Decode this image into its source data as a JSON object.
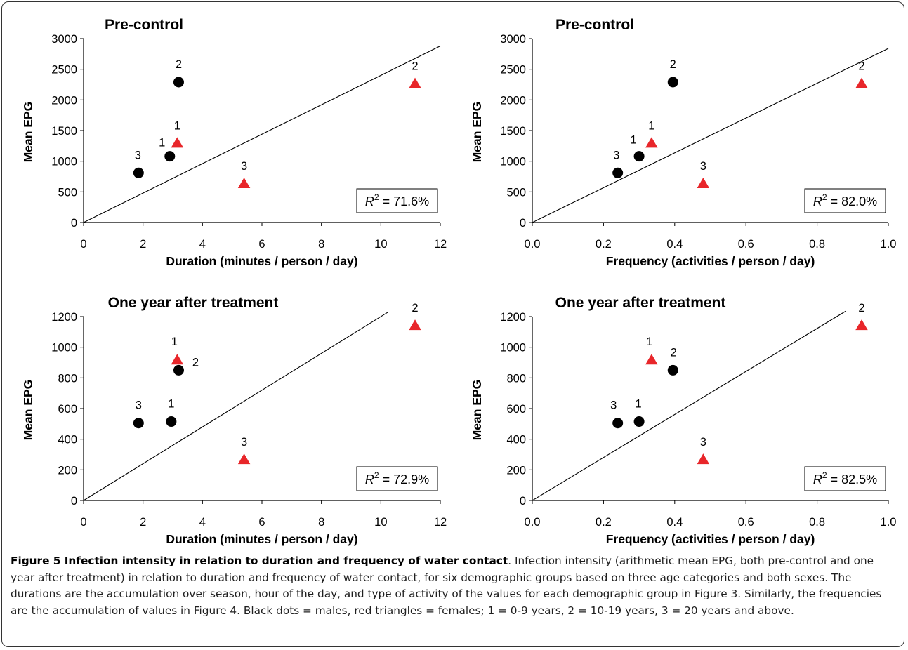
{
  "chart_data": [
    {
      "type": "scatter",
      "title": "Pre-control",
      "xlabel": "Duration (minutes / person / day)",
      "ylabel": "Mean EPG",
      "xlim": [
        0,
        12
      ],
      "ylim": [
        0,
        3000
      ],
      "xticks": [
        "0",
        "2",
        "4",
        "6",
        "8",
        "10",
        "12"
      ],
      "yticks": [
        "0",
        "500",
        "1000",
        "1500",
        "2000",
        "2500",
        "3000"
      ],
      "grid": false,
      "r2_text": "= 71.6%",
      "trendline": {
        "x": [
          0,
          12
        ],
        "y": [
          0,
          2880
        ]
      },
      "series": [
        {
          "marker": "circle",
          "color": "#000000",
          "points": [
            {
              "label": "1",
              "x": 2.9,
              "y": 1080
            },
            {
              "label": "2",
              "x": 3.2,
              "y": 2290
            },
            {
              "label": "3",
              "x": 1.85,
              "y": 810
            }
          ]
        },
        {
          "marker": "triangle",
          "color": "#e8262a",
          "points": [
            {
              "label": "1",
              "x": 3.15,
              "y": 1290
            },
            {
              "label": "2",
              "x": 11.15,
              "y": 2260
            },
            {
              "label": "3",
              "x": 5.4,
              "y": 630
            }
          ]
        }
      ]
    },
    {
      "type": "scatter",
      "title": "Pre-control",
      "xlabel": "Frequency (activities / person / day)",
      "ylabel": "Mean EPG",
      "xlim": [
        0,
        1
      ],
      "ylim": [
        0,
        3000
      ],
      "xticks": [
        "0.0",
        "0.2",
        "0.4",
        "0.6",
        "0.8",
        "1.0"
      ],
      "yticks": [
        "0",
        "500",
        "1000",
        "1500",
        "2000",
        "2500",
        "3000"
      ],
      "grid": false,
      "r2_text": "= 82.0%",
      "trendline": {
        "x": [
          0,
          1
        ],
        "y": [
          0,
          2840
        ]
      },
      "series": [
        {
          "marker": "circle",
          "color": "#000000",
          "points": [
            {
              "label": "1",
              "x": 0.3,
              "y": 1080
            },
            {
              "label": "2",
              "x": 0.395,
              "y": 2290
            },
            {
              "label": "3",
              "x": 0.24,
              "y": 810
            }
          ]
        },
        {
          "marker": "triangle",
          "color": "#e8262a",
          "points": [
            {
              "label": "1",
              "x": 0.335,
              "y": 1290
            },
            {
              "label": "2",
              "x": 0.925,
              "y": 2260
            },
            {
              "label": "3",
              "x": 0.48,
              "y": 630
            }
          ]
        }
      ]
    },
    {
      "type": "scatter",
      "title": "One year after treatment",
      "xlabel": "Duration (minutes / person / day)",
      "ylabel": "Mean EPG",
      "xlim": [
        0,
        12
      ],
      "ylim": [
        0,
        1200
      ],
      "xticks": [
        "0",
        "2",
        "4",
        "6",
        "8",
        "10",
        "12"
      ],
      "yticks": [
        "0",
        "200",
        "400",
        "600",
        "800",
        "1000",
        "1200"
      ],
      "grid": false,
      "r2_text": "= 72.9%",
      "trendline": {
        "x": [
          0,
          10.25
        ],
        "y": [
          0,
          1230
        ]
      },
      "series": [
        {
          "marker": "circle",
          "color": "#000000",
          "points": [
            {
              "label": "1",
              "x": 2.95,
              "y": 515
            },
            {
              "label": "2",
              "x": 3.2,
              "y": 850
            },
            {
              "label": "3",
              "x": 1.85,
              "y": 505
            }
          ]
        },
        {
          "marker": "triangle",
          "color": "#e8262a",
          "points": [
            {
              "label": "1",
              "x": 3.15,
              "y": 915
            },
            {
              "label": "2",
              "x": 11.15,
              "y": 1140
            },
            {
              "label": "3",
              "x": 5.4,
              "y": 265
            }
          ]
        }
      ]
    },
    {
      "type": "scatter",
      "title": "One year after treatment",
      "xlabel": "Frequency (activities / person / day)",
      "ylabel": "Mean EPG",
      "xlim": [
        0,
        1
      ],
      "ylim": [
        0,
        1200
      ],
      "xticks": [
        "0.0",
        "0.2",
        "0.4",
        "0.6",
        "0.8",
        "1.0"
      ],
      "yticks": [
        "0",
        "200",
        "400",
        "600",
        "800",
        "1000",
        "1200"
      ],
      "grid": false,
      "r2_text": "= 82.5%",
      "trendline": {
        "x": [
          0,
          0.88
        ],
        "y": [
          0,
          1235
        ]
      },
      "series": [
        {
          "marker": "circle",
          "color": "#000000",
          "points": [
            {
              "label": "1",
              "x": 0.3,
              "y": 515
            },
            {
              "label": "2",
              "x": 0.395,
              "y": 850
            },
            {
              "label": "3",
              "x": 0.24,
              "y": 505
            }
          ]
        },
        {
          "marker": "triangle",
          "color": "#e8262a",
          "points": [
            {
              "label": "1",
              "x": 0.335,
              "y": 915
            },
            {
              "label": "2",
              "x": 0.925,
              "y": 1140
            },
            {
              "label": "3",
              "x": 0.48,
              "y": 265
            }
          ]
        }
      ]
    }
  ],
  "caption": {
    "title": "Figure 5 Infection intensity in relation to duration and frequency of water contact",
    "body": ". Infection intensity (arithmetic mean EPG, both pre-control and one year after treatment) in relation to duration and frequency of water contact, for six demographic groups based on three age categories and both sexes. The durations are the accumulation over season, hour of the day, and type of activity of the values for each demographic group in Figure 3. Similarly, the frequencies are the accumulation of values in Figure 4. Black dots = males, red triangles = females; 1 = 0-9 years, 2 = 10-19 years, 3 = 20 years and above."
  }
}
